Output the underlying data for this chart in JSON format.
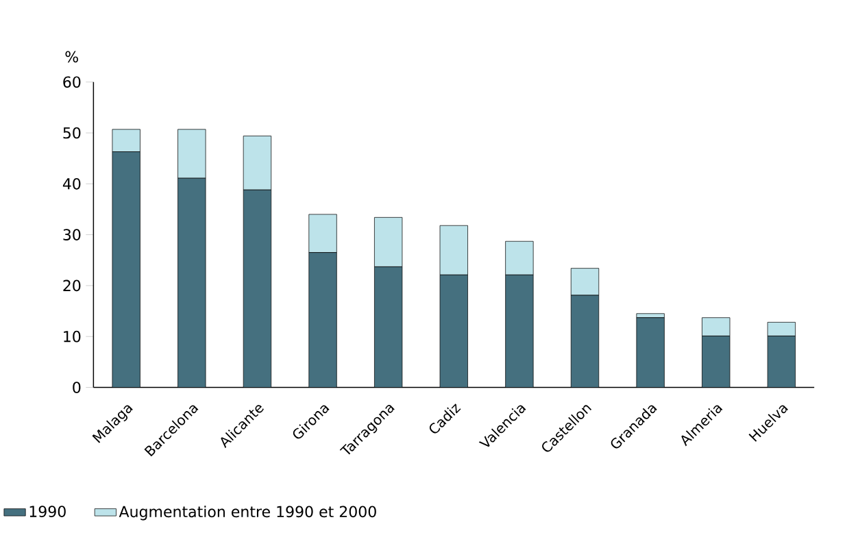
{
  "chart_data": {
    "type": "bar",
    "stacked": true,
    "ylabel": "%",
    "categories": [
      "Malaga",
      "Barcelona",
      "Alicante",
      "Girona",
      "Tarragona",
      "Cadiz",
      "Valencia",
      "Castellon",
      "Granada",
      "Almeria",
      "Huelva"
    ],
    "series": [
      {
        "name": "1990",
        "color": "#45707f",
        "values": [
          46.3,
          41.1,
          38.8,
          26.5,
          23.7,
          22.1,
          22.1,
          18.1,
          13.7,
          10.1,
          10.1
        ]
      },
      {
        "name": "Augmentation entre 1990 et 2000",
        "color": "#bde3ea",
        "values": [
          4.4,
          9.6,
          10.6,
          7.5,
          9.7,
          9.7,
          6.6,
          5.3,
          0.8,
          3.6,
          2.7
        ]
      }
    ],
    "ylim": [
      0,
      60
    ],
    "yticks": [
      0,
      10,
      20,
      30,
      40,
      50,
      60
    ],
    "grid": false,
    "legend": "bottom left"
  }
}
